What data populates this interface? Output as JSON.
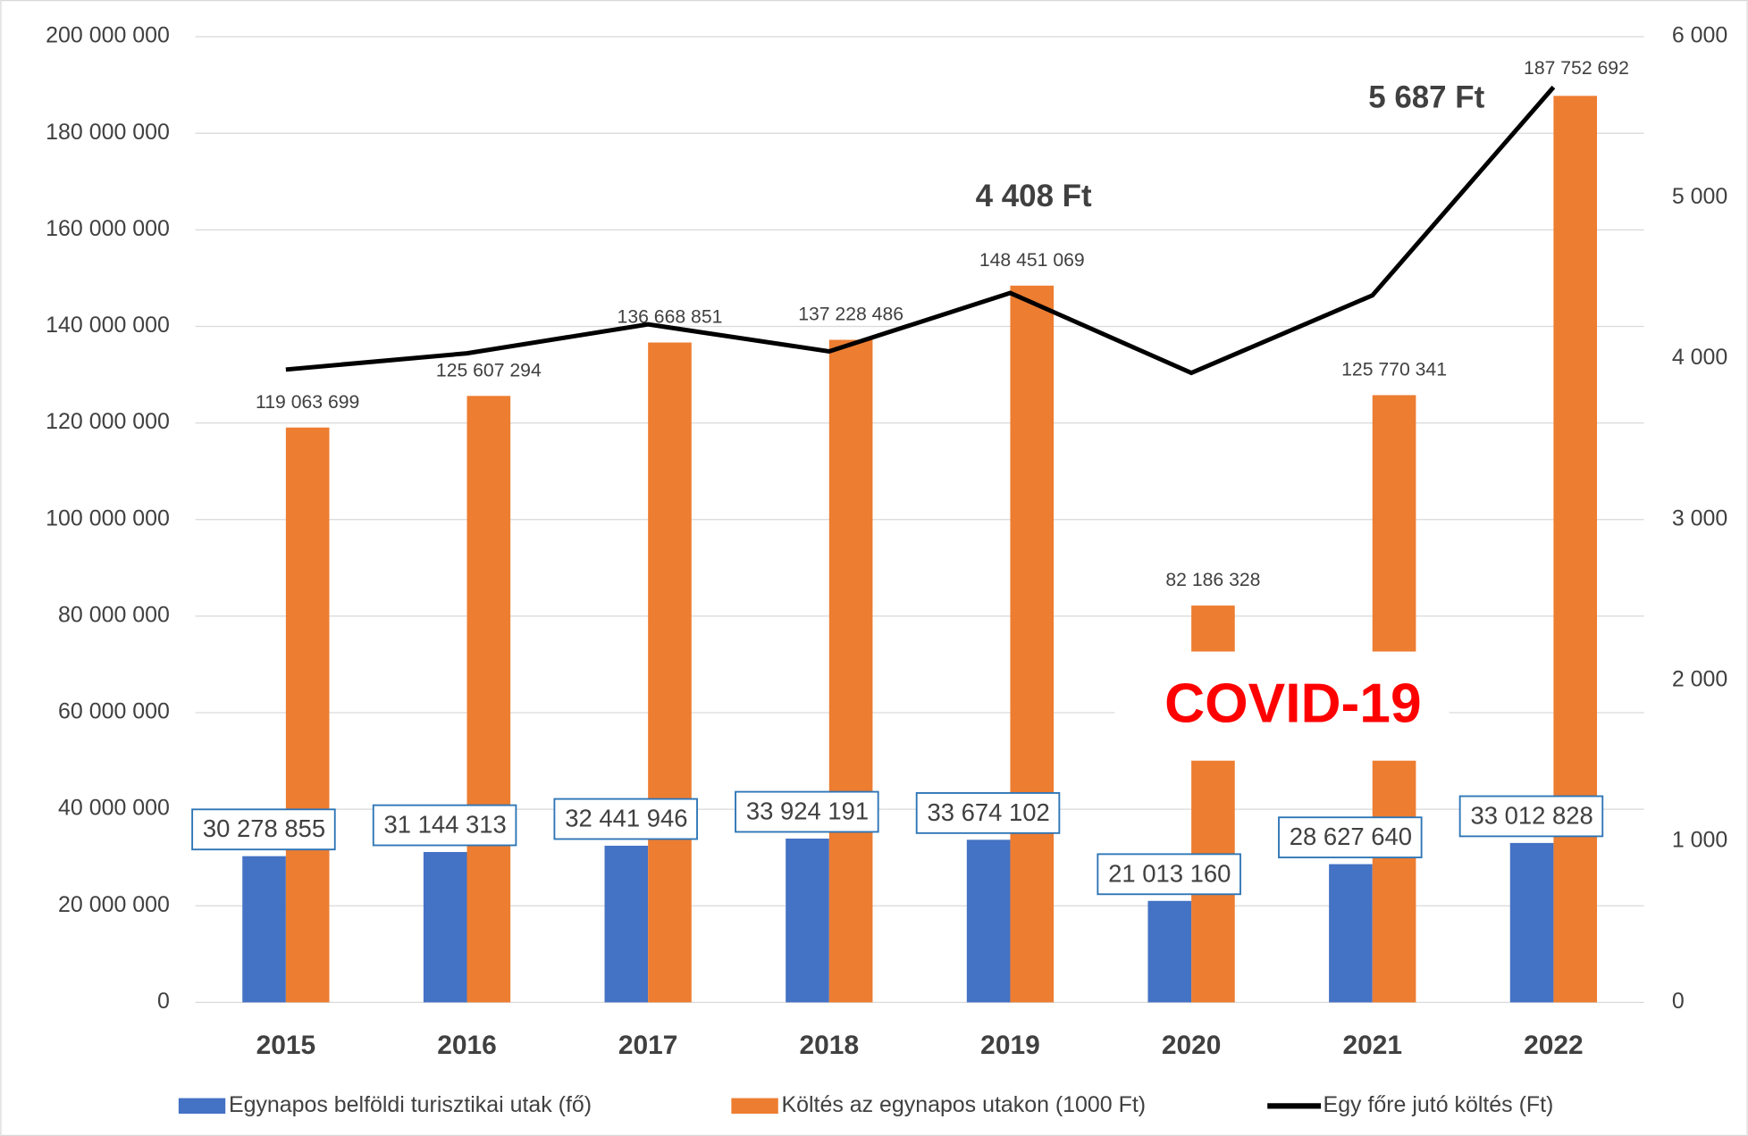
{
  "chart_data": {
    "type": "bar",
    "categories": [
      "2015",
      "2016",
      "2017",
      "2018",
      "2019",
      "2020",
      "2021",
      "2022"
    ],
    "series": [
      {
        "name": "Egynapos belföldi turisztikai utak (fő)",
        "color": "#4472c4",
        "values": [
          30278855,
          31144313,
          32441946,
          33924191,
          33674102,
          21013160,
          28627640,
          33012828
        ],
        "value_labels": [
          "30 278 855",
          "31 144 313",
          "32 441 946",
          "33 924 191",
          "33 674 102",
          "21 013 160",
          "28 627 640",
          "33 012 828"
        ]
      },
      {
        "name": "Költés az egynapos utakon (1000 Ft)",
        "color": "#ed7d31",
        "values": [
          119063699,
          125607294,
          136668851,
          137228486,
          148451069,
          82186328,
          125770341,
          187752692
        ],
        "value_labels": [
          "119 063 699",
          "125 607 294",
          "136 668 851",
          "137 228 486",
          "148 451 069",
          "82 186 328",
          "125 770 341",
          "187 752 692"
        ]
      },
      {
        "name": "Egy főre jutó költés (Ft)",
        "color": "#000000",
        "type": "line",
        "axis": "y2",
        "values": [
          3932,
          4033,
          4213,
          4045,
          4408,
          3911,
          4393,
          5687
        ],
        "value_labels": [
          null,
          null,
          null,
          null,
          "4 408 Ft",
          null,
          null,
          "5 687 Ft"
        ]
      }
    ],
    "ylim": [
      0,
      200000000
    ],
    "yticks": [
      0,
      {
        "value": 20000000,
        "label": "20 000 000"
      },
      {
        "value": 40000000,
        "label": "40 000 000"
      },
      {
        "value": 60000000,
        "label": "60 000 000"
      },
      {
        "value": 80000000,
        "label": "80 000 000"
      },
      {
        "value": 100000000,
        "label": "100 000 000"
      },
      {
        "value": 120000000,
        "label": "120 000 000"
      },
      {
        "value": 140000000,
        "label": "140 000 000"
      },
      {
        "value": 160000000,
        "label": "160 000 000"
      },
      {
        "value": 180000000,
        "label": "180 000 000"
      },
      {
        "value": 200000000,
        "label": "200 000 000"
      }
    ],
    "y2lim": [
      0,
      6000
    ],
    "y2ticks": [
      0,
      {
        "value": 1000,
        "label": "1 000"
      },
      {
        "value": 2000,
        "label": "2 000"
      },
      {
        "value": 3000,
        "label": "3 000"
      },
      {
        "value": 4000,
        "label": "4 000"
      },
      {
        "value": 5000,
        "label": "5 000"
      },
      {
        "value": 6000,
        "label": "6 000"
      }
    ],
    "grid": true,
    "legend": "bottom",
    "annotations": [
      {
        "text": "COVID-19",
        "color": "#ff0000"
      }
    ]
  }
}
